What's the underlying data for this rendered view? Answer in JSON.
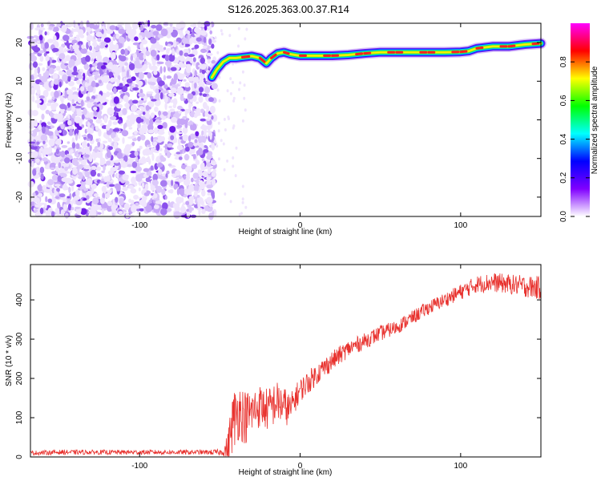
{
  "title": "S126.2025.363.00.37.R14",
  "chart_data": [
    {
      "type": "heatmap",
      "title": "S126.2025.363.00.37.R14",
      "xlabel": "Height of straight line (km)",
      "ylabel": "Frequency (Hz)",
      "xlim": [
        -168,
        150
      ],
      "ylim": [
        -25,
        25
      ],
      "xticks": [
        "-100",
        "0",
        "100"
      ],
      "yticks": [
        "20",
        "10",
        "0",
        "-10",
        "-20"
      ],
      "noise_region_x": [
        -168,
        -53
      ],
      "trace": {
        "x": [
          -55,
          -52,
          -48,
          -44,
          -40,
          -36,
          -30,
          -25,
          -21,
          -18,
          -14,
          -10,
          -6,
          0,
          10,
          20,
          30,
          40,
          50,
          60,
          70,
          80,
          90,
          100,
          105,
          110,
          120,
          130,
          140,
          150
        ],
        "y": [
          11,
          13,
          15,
          16,
          16,
          16.2,
          16.5,
          16,
          14.6,
          16,
          17.2,
          17.5,
          17,
          16.6,
          16.6,
          16.6,
          16.8,
          17.2,
          17.5,
          17.5,
          17.5,
          17.5,
          17.5,
          17.6,
          17.8,
          18.5,
          19,
          19,
          19.5,
          19.8
        ]
      },
      "colorbar": {
        "label": "Normalized spectral amplitude",
        "ticks": [
          "0.0",
          "0.2",
          "0.4",
          "0.6",
          "0.8"
        ],
        "range": [
          0,
          1
        ],
        "colors": [
          "#ffffff",
          "#8000ff",
          "#0000ff",
          "#00ffff",
          "#00ff00",
          "#ffff00",
          "#ff0000",
          "#ff00ff"
        ]
      },
      "colors": {
        "noise": "#8a3ff0",
        "trace_core": "#ff2020",
        "trace_edge": "#00d0ff"
      }
    },
    {
      "type": "line",
      "xlabel": "Height of straight line (km)",
      "ylabel": "SNR (10 * v/v)",
      "xlim": [
        -168,
        150
      ],
      "ylim": [
        0,
        490
      ],
      "xticks": [
        "-100",
        "0",
        "100"
      ],
      "yticks": [
        "0",
        "100",
        "200",
        "300",
        "400"
      ],
      "series": [
        {
          "name": "SNR",
          "color": "#e8322e",
          "x": [
            -168,
            -150,
            -120,
            -90,
            -60,
            -48,
            -45,
            -42,
            -38,
            -34,
            -30,
            -25,
            -20,
            -15,
            -10,
            -6,
            -3,
            0,
            5,
            10,
            20,
            30,
            40,
            50,
            60,
            70,
            80,
            90,
            100,
            110,
            120,
            130,
            140,
            150
          ],
          "y": [
            10,
            12,
            12,
            12,
            12,
            12,
            25,
            90,
            120,
            100,
            115,
            130,
            120,
            140,
            130,
            120,
            150,
            170,
            190,
            210,
            245,
            275,
            295,
            315,
            330,
            355,
            380,
            400,
            420,
            440,
            445,
            440,
            435,
            430
          ],
          "noise_amplitude": [
            6,
            6,
            6,
            6,
            6,
            8,
            40,
            80,
            75,
            70,
            60,
            55,
            55,
            55,
            50,
            40,
            35,
            30,
            30,
            28,
            25,
            22,
            20,
            20,
            18,
            18,
            18,
            18,
            20,
            22,
            25,
            25,
            28,
            30
          ]
        }
      ]
    }
  ]
}
